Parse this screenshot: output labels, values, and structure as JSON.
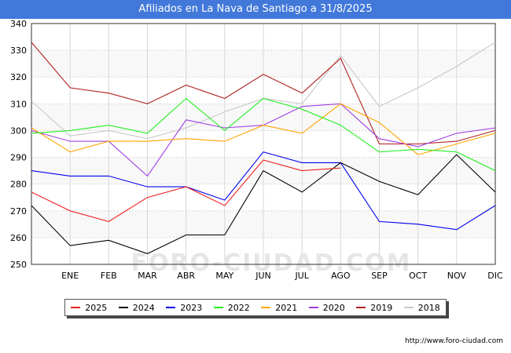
{
  "page": {
    "title": "Afiliados en La Nava de Santiago a 31/8/2025",
    "source": "http://www.foro-ciudad.com",
    "watermark": "FORO-CIUDAD.COM"
  },
  "colors": {
    "title_bg": "#4178d9",
    "plot_bg": "#f8f8f8",
    "grid": "#d8d8d8"
  },
  "chart_data": {
    "type": "line",
    "title": "Afiliados en La Nava de Santiago a 31/8/2025",
    "xlabel": "",
    "ylabel": "",
    "ylim": [
      250,
      340
    ],
    "yticks": [
      250,
      260,
      270,
      280,
      290,
      300,
      310,
      320,
      330,
      340
    ],
    "categories": [
      "",
      "ENE",
      "FEB",
      "MAR",
      "ABR",
      "MAY",
      "JUN",
      "JUL",
      "AGO",
      "SEP",
      "OCT",
      "NOV",
      "DIC"
    ],
    "grid": true,
    "legend_position": "bottom",
    "series": [
      {
        "name": "2025",
        "color": "#ee2222",
        "values": [
          277,
          270,
          266,
          275,
          279,
          272,
          289,
          285,
          286,
          null,
          null,
          null,
          null
        ]
      },
      {
        "name": "2024",
        "color": "#000000",
        "values": [
          272,
          257,
          259,
          254,
          261,
          261,
          285,
          277,
          288,
          281,
          276,
          291,
          277
        ]
      },
      {
        "name": "2023",
        "color": "#0000ee",
        "values": [
          285,
          283,
          283,
          279,
          279,
          274,
          292,
          288,
          288,
          266,
          265,
          263,
          272
        ]
      },
      {
        "name": "2022",
        "color": "#22ee22",
        "values": [
          299,
          300,
          302,
          299,
          312,
          300,
          312,
          308,
          302,
          292,
          293,
          292,
          285
        ]
      },
      {
        "name": "2021",
        "color": "#ffa500",
        "values": [
          301,
          292,
          296,
          296,
          297,
          296,
          302,
          299,
          310,
          303,
          291,
          295,
          299
        ]
      },
      {
        "name": "2020",
        "color": "#a040e0",
        "values": [
          300,
          296,
          296,
          283,
          304,
          301,
          302,
          309,
          310,
          297,
          294,
          299,
          301
        ]
      },
      {
        "name": "2019",
        "color": "#b02020",
        "values": [
          333,
          316,
          314,
          310,
          317,
          312,
          321,
          314,
          327,
          295,
          295,
          296,
          300
        ]
      },
      {
        "name": "2018",
        "color": "#c8c8c8",
        "values": [
          311,
          298,
          300,
          297,
          301,
          307,
          312,
          310,
          328,
          309,
          316,
          324,
          333
        ]
      }
    ]
  }
}
